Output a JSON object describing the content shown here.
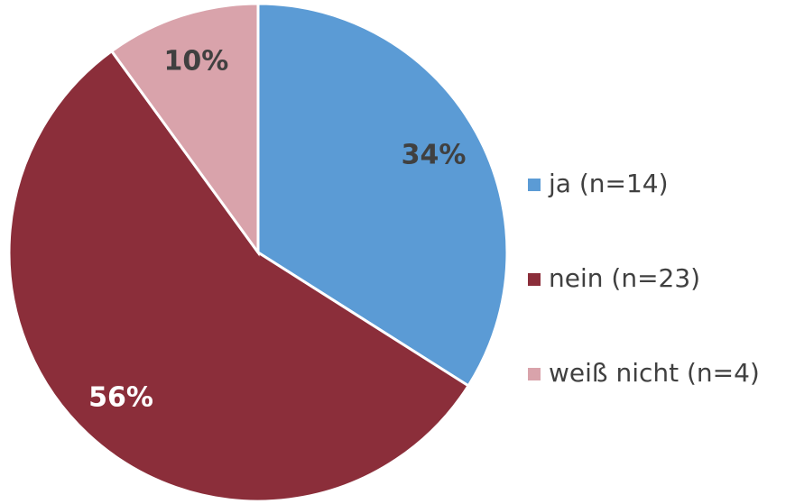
{
  "chart_data": {
    "type": "pie",
    "categories": [
      "ja (n=14)",
      "nein (n=23)",
      "weiß nicht (n=4)"
    ],
    "values": [
      34,
      56,
      10
    ],
    "value_labels": [
      "34%",
      "56%",
      "10%"
    ],
    "colors": [
      "#5b9bd5",
      "#8b2e3a",
      "#d9a3ab"
    ],
    "label_colors": [
      "#404040",
      "#ffffff",
      "#404040"
    ],
    "legend": "right"
  }
}
